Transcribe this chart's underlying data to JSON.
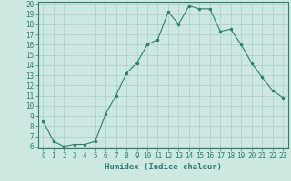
{
  "title": "",
  "xlabel": "Humidex (Indice chaleur)",
  "ylabel": "",
  "x": [
    0,
    1,
    2,
    3,
    4,
    5,
    6,
    7,
    8,
    9,
    10,
    11,
    12,
    13,
    14,
    15,
    16,
    17,
    18,
    19,
    20,
    21,
    22,
    23
  ],
  "y": [
    8.5,
    6.5,
    6.0,
    6.2,
    6.2,
    6.5,
    9.2,
    11.0,
    13.2,
    14.2,
    16.0,
    16.5,
    19.2,
    18.0,
    19.8,
    19.5,
    19.5,
    17.3,
    17.5,
    16.0,
    14.2,
    12.8,
    11.5,
    10.8
  ],
  "line_color": "#2d7d6e",
  "marker": "o",
  "marker_size": 2,
  "bg_color": "#cce8e0",
  "grid_color": "#aacccc",
  "ylim_min": 6,
  "ylim_max": 20,
  "yticks": [
    6,
    7,
    8,
    9,
    10,
    11,
    12,
    13,
    14,
    15,
    16,
    17,
    18,
    19,
    20
  ],
  "xticks": [
    0,
    1,
    2,
    3,
    4,
    5,
    6,
    7,
    8,
    9,
    10,
    11,
    12,
    13,
    14,
    15,
    16,
    17,
    18,
    19,
    20,
    21,
    22,
    23
  ],
  "tick_label_fontsize": 5.5,
  "xlabel_fontsize": 6.5,
  "axis_color": "#2d7d6e",
  "linewidth": 0.8
}
